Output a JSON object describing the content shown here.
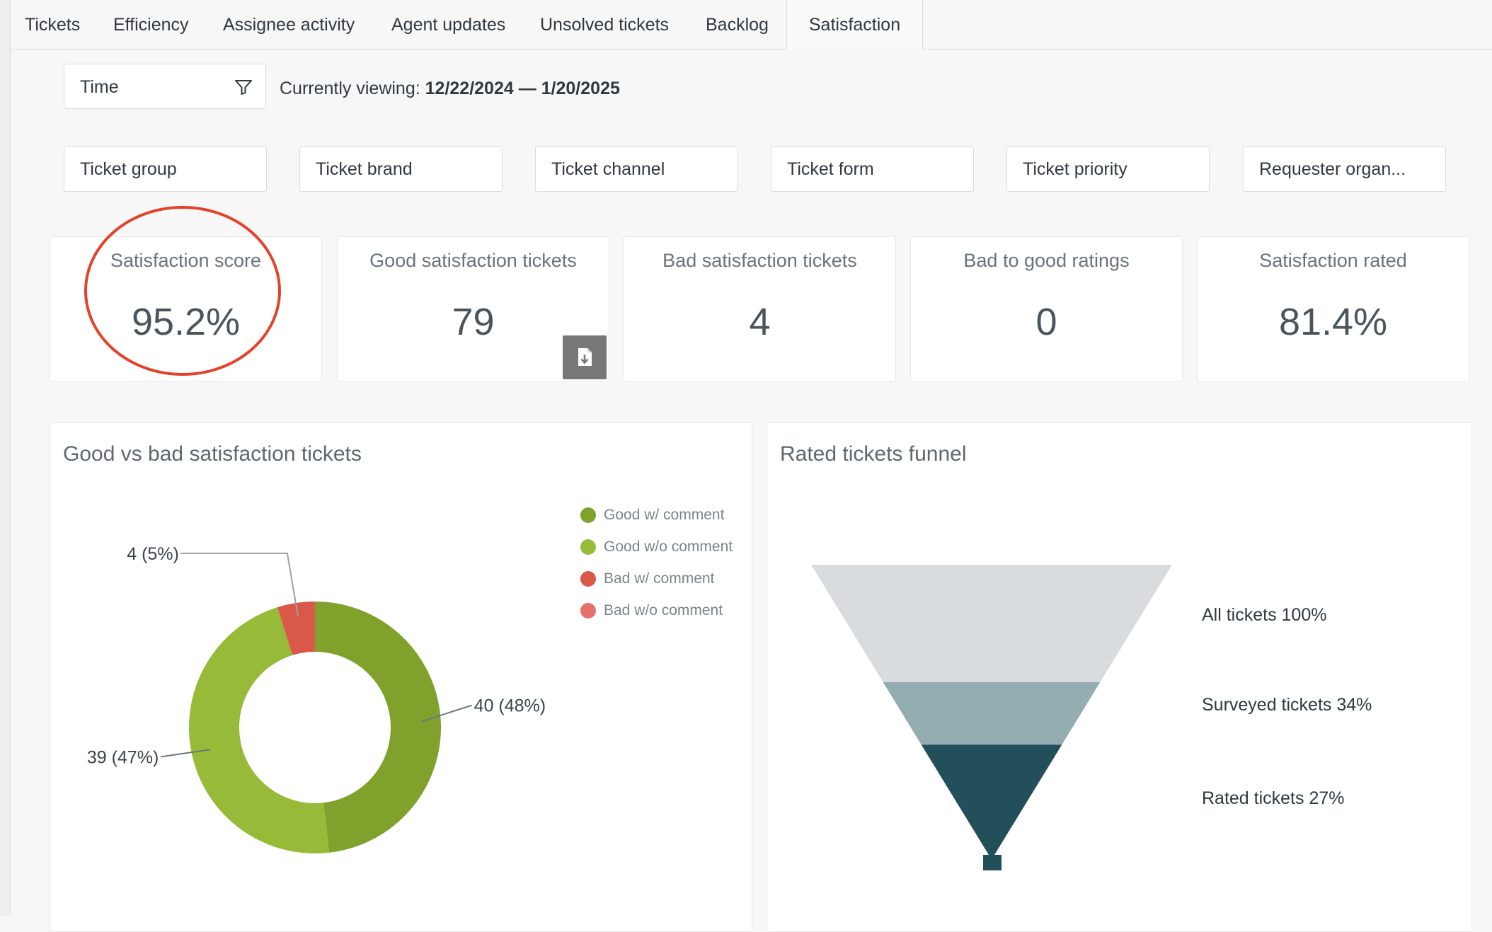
{
  "tabs": [
    {
      "label": "Tickets",
      "active": false
    },
    {
      "label": "Efficiency",
      "active": false
    },
    {
      "label": "Assignee activity",
      "active": false
    },
    {
      "label": "Agent updates",
      "active": false
    },
    {
      "label": "Unsolved tickets",
      "active": false
    },
    {
      "label": "Backlog",
      "active": false
    },
    {
      "label": "Satisfaction",
      "active": true
    }
  ],
  "time_filter": {
    "label": "Time",
    "icon": "filter-funnel-icon"
  },
  "viewing": {
    "prefix": "Currently viewing:",
    "range": "12/22/2024 — 1/20/2025"
  },
  "filters": [
    "Ticket group",
    "Ticket brand",
    "Ticket channel",
    "Ticket form",
    "Ticket priority",
    "Requester organ..."
  ],
  "kpis": [
    {
      "title": "Satisfaction score",
      "value": "95.2%",
      "annotated": true
    },
    {
      "title": "Good satisfaction tickets",
      "value": "79",
      "has_export": true
    },
    {
      "title": "Bad satisfaction tickets",
      "value": "4"
    },
    {
      "title": "Bad to good ratings",
      "value": "0"
    },
    {
      "title": "Satisfaction rated",
      "value": "81.4%"
    }
  ],
  "export_icon": "export-file-icon",
  "annotation_color": "#e2432a",
  "panels": {
    "satisfaction": {
      "title": "Good vs bad satisfaction tickets"
    },
    "funnel": {
      "title": "Rated tickets funnel"
    }
  },
  "chart_data": [
    {
      "type": "pie",
      "variant": "donut",
      "title": "Good vs bad satisfaction tickets",
      "legend_position": "top-right",
      "series": [
        {
          "name": "Good w/ comment",
          "value": 40,
          "label": "40 (48%)",
          "color": "#80a22d"
        },
        {
          "name": "Good w/o comment",
          "value": 39,
          "label": "39 (47%)",
          "color": "#97bb39"
        },
        {
          "name": "Bad w/ comment",
          "value": 4,
          "label": "4 (5%)",
          "color": "#d9584a"
        },
        {
          "name": "Bad w/o comment",
          "value": 0,
          "label": "",
          "color": "#e6716a"
        }
      ]
    },
    {
      "type": "funnel",
      "title": "Rated tickets funnel",
      "stages": [
        {
          "name": "All tickets",
          "value": 100,
          "label": "All tickets 100%",
          "color": "#d8dcdf"
        },
        {
          "name": "Surveyed tickets",
          "value": 34,
          "label": "Surveyed tickets 34%",
          "color": "#94adb1"
        },
        {
          "name": "Rated tickets",
          "value": 27,
          "label": "Rated tickets 27%",
          "color": "#234f5b"
        }
      ]
    }
  ]
}
